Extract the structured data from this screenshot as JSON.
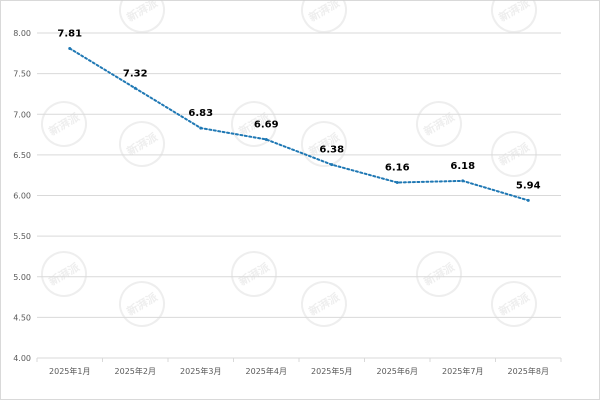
{
  "watermark": {
    "text": "新湃派"
  },
  "chart_data": {
    "type": "line",
    "categories": [
      "2025年1月",
      "2025年2月",
      "2025年3月",
      "2025年4月",
      "2025年5月",
      "2025年6月",
      "2025年7月",
      "2025年8月"
    ],
    "values": [
      7.81,
      7.32,
      6.83,
      6.69,
      6.38,
      6.16,
      6.18,
      5.94
    ],
    "data_labels": [
      "7.81",
      "7.32",
      "6.83",
      "6.69",
      "6.38",
      "6.16",
      "6.18",
      "5.94"
    ],
    "ylim": [
      4.0,
      8.0
    ],
    "yticks": [
      "4.00",
      "4.50",
      "5.00",
      "5.50",
      "6.00",
      "6.50",
      "7.00",
      "7.50",
      "8.00"
    ],
    "ytick_values": [
      4.0,
      4.5,
      5.0,
      5.5,
      6.0,
      6.5,
      7.0,
      7.5,
      8.0
    ],
    "grid": true,
    "line_style": "dotted",
    "title": "",
    "xlabel": "",
    "ylabel": "",
    "colors": {
      "line": "#1f78b4",
      "grid": "#d9d9d9",
      "tick_text": "#595959",
      "label_text": "#000000"
    }
  }
}
